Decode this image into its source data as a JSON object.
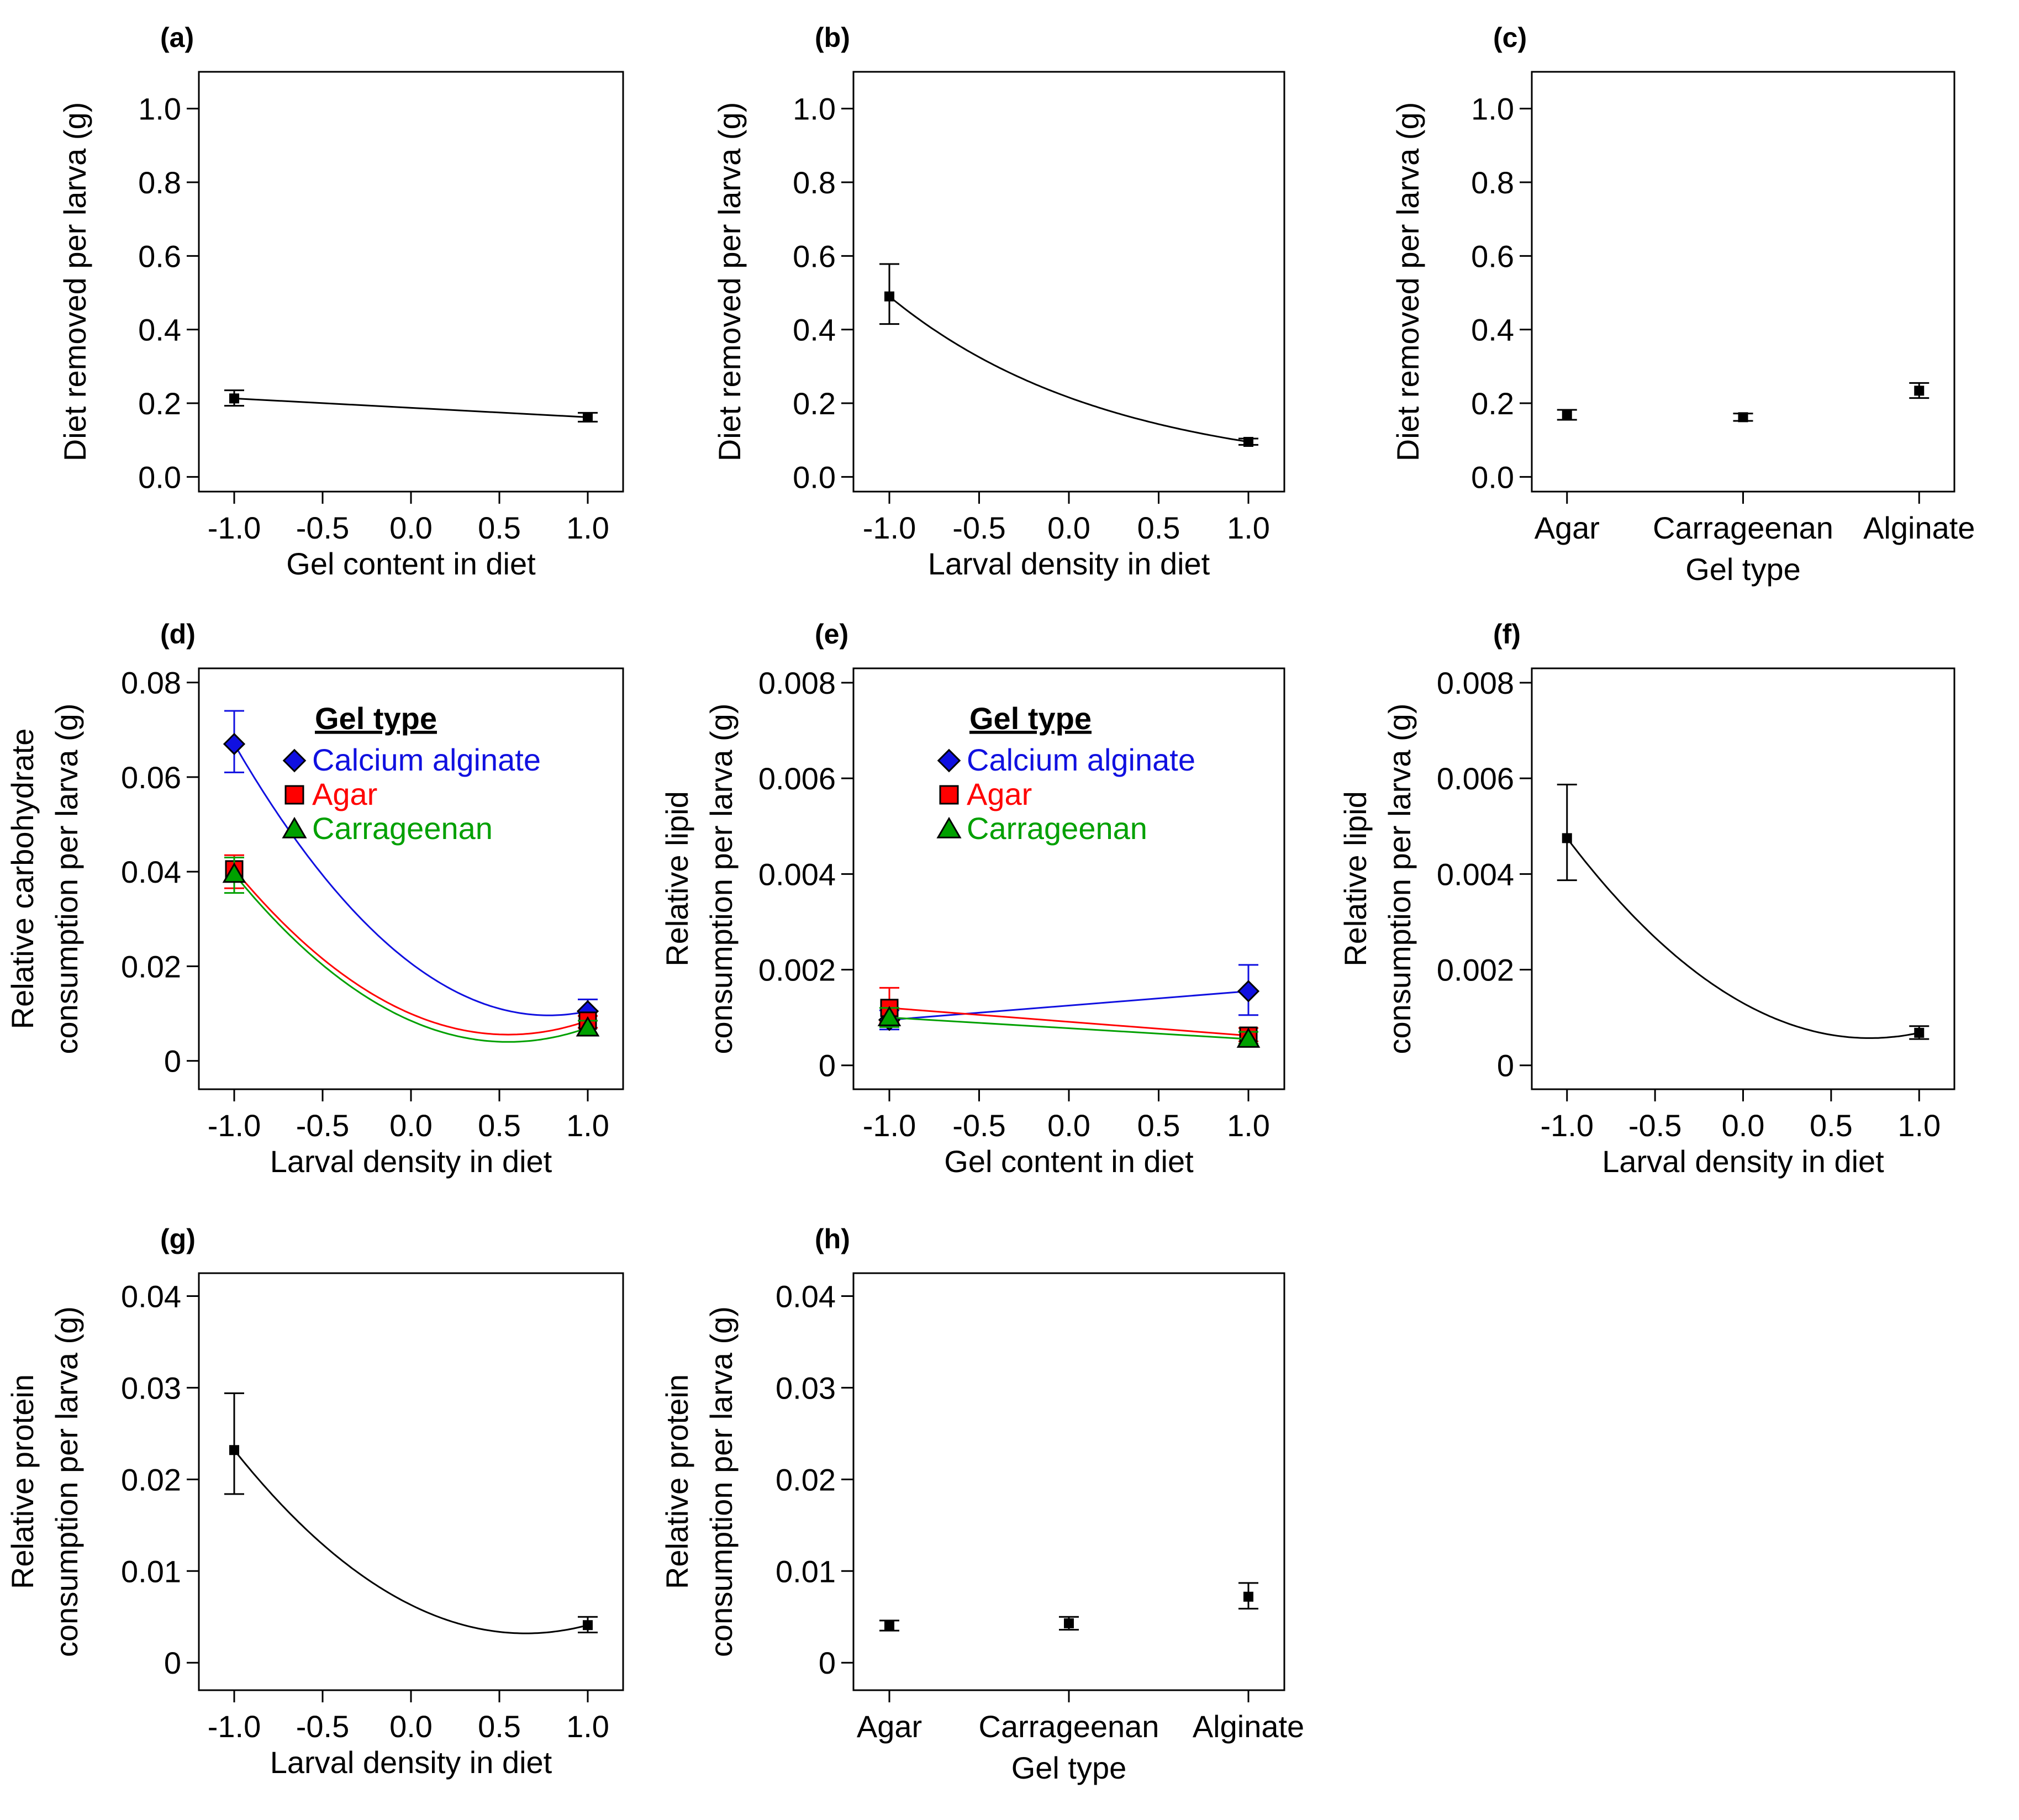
{
  "chart_data": [
    {
      "id": "a",
      "panel_label": "(a)",
      "type": "line",
      "xlabel": "Gel content in diet",
      "ylabel": "Diet removed per larva (g)",
      "xlim": [
        -1.2,
        1.2
      ],
      "ylim": [
        -0.04,
        1.1
      ],
      "xticks": [
        -1.0,
        -0.5,
        0.0,
        0.5,
        1.0
      ],
      "xticklabels": [
        "-1.0",
        "-0.5",
        "0.0",
        "0.5",
        "1.0"
      ],
      "yticks": [
        0,
        0.2,
        0.4,
        0.6,
        0.8,
        1.0
      ],
      "yticklabels": [
        "0.0",
        "0.2",
        "0.4",
        "0.6",
        "0.8",
        "1.0"
      ],
      "series": [
        {
          "name": "",
          "color": "#000000",
          "curve": "linear",
          "marker": "square",
          "points": [
            {
              "x": -1.0,
              "y": 0.213,
              "err_low": 0.193,
              "err_high": 0.235
            },
            {
              "x": 1.0,
              "y": 0.162,
              "err_low": 0.15,
              "err_high": 0.174
            }
          ]
        }
      ]
    },
    {
      "id": "b",
      "panel_label": "(b)",
      "type": "line",
      "xlabel": "Larval density in diet",
      "ylabel": "Diet removed per larva (g)",
      "xlim": [
        -1.2,
        1.2
      ],
      "ylim": [
        -0.04,
        1.1
      ],
      "xticks": [
        -1.0,
        -0.5,
        0.0,
        0.5,
        1.0
      ],
      "xticklabels": [
        "-1.0",
        "-0.5",
        "0.0",
        "0.5",
        "1.0"
      ],
      "yticks": [
        0,
        0.2,
        0.4,
        0.6,
        0.8,
        1.0
      ],
      "yticklabels": [
        "0.0",
        "0.2",
        "0.4",
        "0.6",
        "0.8",
        "1.0"
      ],
      "series": [
        {
          "name": "",
          "color": "#000000",
          "curve": "exp",
          "marker": "square",
          "points": [
            {
              "x": -1.0,
              "y": 0.49,
              "err_low": 0.415,
              "err_high": 0.578
            },
            {
              "x": 1.0,
              "y": 0.095,
              "err_low": 0.087,
              "err_high": 0.104
            }
          ]
        }
      ]
    },
    {
      "id": "c",
      "panel_label": "(c)",
      "type": "scatter",
      "xlabel": "Gel type",
      "ylabel": "Diet removed per larva (g)",
      "xlim": [
        -1.2,
        1.2
      ],
      "ylim": [
        -0.04,
        1.1
      ],
      "xticks": [
        -1.0,
        0.0,
        1.0
      ],
      "xticklabels": [
        "Agar",
        "Carrageenan",
        "Alginate"
      ],
      "yticks": [
        0,
        0.2,
        0.4,
        0.6,
        0.8,
        1.0
      ],
      "yticklabels": [
        "0.0",
        "0.2",
        "0.4",
        "0.6",
        "0.8",
        "1.0"
      ],
      "series": [
        {
          "name": "",
          "color": "#000000",
          "curve": "none",
          "marker": "square",
          "points": [
            {
              "x": -1.0,
              "y": 0.168,
              "err_low": 0.155,
              "err_high": 0.182
            },
            {
              "x": 0.0,
              "y": 0.162,
              "err_low": 0.152,
              "err_high": 0.172
            },
            {
              "x": 1.0,
              "y": 0.234,
              "err_low": 0.214,
              "err_high": 0.255
            }
          ]
        }
      ]
    },
    {
      "id": "d",
      "panel_label": "(d)",
      "type": "line",
      "xlabel": "Larval density in diet",
      "ylabel": "Relative carbohydrate\nconsumption per larva (g)",
      "xlim": [
        -1.2,
        1.2
      ],
      "ylim": [
        -0.006,
        0.083
      ],
      "xticks": [
        -1.0,
        -0.5,
        0.0,
        0.5,
        1.0
      ],
      "xticklabels": [
        "-1.0",
        "-0.5",
        "0.0",
        "0.5",
        "1.0"
      ],
      "yticks": [
        0,
        0.02,
        0.04,
        0.06,
        0.08
      ],
      "yticklabels": [
        "0",
        "0.02",
        "0.04",
        "0.06",
        "0.08"
      ],
      "legend": {
        "title": "Gel type",
        "position": "top-center",
        "entries": [
          {
            "label": "Calcium alginate",
            "color": "#1010e0",
            "marker": "diamond"
          },
          {
            "label": "Agar",
            "color": "#ff0000",
            "marker": "square"
          },
          {
            "label": "Carrageenan",
            "color": "#00a000",
            "marker": "triangle"
          }
        ]
      },
      "series": [
        {
          "name": "Calcium alginate",
          "color": "#1010e0",
          "curve": "quad",
          "quad_min_x": 0.78,
          "marker": "diamond",
          "points": [
            {
              "x": -1.0,
              "y": 0.067,
              "err_low": 0.061,
              "err_high": 0.074
            },
            {
              "x": 1.0,
              "y": 0.0105,
              "err_low": 0.0085,
              "err_high": 0.013
            }
          ]
        },
        {
          "name": "Agar",
          "color": "#ff0000",
          "curve": "quad",
          "quad_min_x": 0.55,
          "marker": "square",
          "points": [
            {
              "x": -1.0,
              "y": 0.0405,
              "err_low": 0.0365,
              "err_high": 0.0435
            },
            {
              "x": 1.0,
              "y": 0.0085,
              "err_low": 0.007,
              "err_high": 0.0095
            }
          ]
        },
        {
          "name": "Carrageenan",
          "color": "#00a000",
          "curve": "quad",
          "quad_min_x": 0.55,
          "marker": "triangle",
          "points": [
            {
              "x": -1.0,
              "y": 0.0395,
              "err_low": 0.0355,
              "err_high": 0.043
            },
            {
              "x": 1.0,
              "y": 0.007,
              "err_low": 0.0055,
              "err_high": 0.0085
            }
          ]
        }
      ]
    },
    {
      "id": "e",
      "panel_label": "(e)",
      "type": "line",
      "xlabel": "Gel content in diet",
      "ylabel": "Relative lipid\nconsumption per larva (g)",
      "xlim": [
        -1.2,
        1.2
      ],
      "ylim": [
        -0.0005,
        0.0083
      ],
      "xticks": [
        -1.0,
        -0.5,
        0.0,
        0.5,
        1.0
      ],
      "xticklabels": [
        "-1.0",
        "-0.5",
        "0.0",
        "0.5",
        "1.0"
      ],
      "yticks": [
        0,
        0.002,
        0.004,
        0.006,
        0.008
      ],
      "yticklabels": [
        "0",
        "0.002",
        "0.004",
        "0.006",
        "0.008"
      ],
      "legend": {
        "title": "Gel type",
        "position": "top-center",
        "entries": [
          {
            "label": "Calcium alginate",
            "color": "#1010e0",
            "marker": "diamond"
          },
          {
            "label": "Agar",
            "color": "#ff0000",
            "marker": "square"
          },
          {
            "label": "Carrageenan",
            "color": "#00a000",
            "marker": "triangle"
          }
        ]
      },
      "series": [
        {
          "name": "Calcium alginate",
          "color": "#1010e0",
          "curve": "linear",
          "marker": "diamond",
          "points": [
            {
              "x": -1.0,
              "y": 0.00095,
              "err_low": 0.00075,
              "err_high": 0.00115
            },
            {
              "x": 1.0,
              "y": 0.00155,
              "err_low": 0.00105,
              "err_high": 0.0021
            }
          ]
        },
        {
          "name": "Agar",
          "color": "#ff0000",
          "curve": "linear",
          "marker": "square",
          "points": [
            {
              "x": -1.0,
              "y": 0.0012,
              "err_low": 0.0009,
              "err_high": 0.00162
            },
            {
              "x": 1.0,
              "y": 0.00062,
              "err_low": 0.0005,
              "err_high": 0.00078
            }
          ]
        },
        {
          "name": "Carrageenan",
          "color": "#00a000",
          "curve": "linear",
          "marker": "triangle",
          "points": [
            {
              "x": -1.0,
              "y": 0.001,
              "err_low": 0.0008,
              "err_high": 0.0012
            },
            {
              "x": 1.0,
              "y": 0.00055,
              "err_low": 0.00045,
              "err_high": 0.0007
            }
          ]
        }
      ]
    },
    {
      "id": "f",
      "panel_label": "(f)",
      "type": "line",
      "xlabel": "Larval density in diet",
      "ylabel": "Relative lipid\nconsumption per larva (g)",
      "xlim": [
        -1.2,
        1.2
      ],
      "ylim": [
        -0.0005,
        0.0083
      ],
      "xticks": [
        -1.0,
        -0.5,
        0.0,
        0.5,
        1.0
      ],
      "xticklabels": [
        "-1.0",
        "-0.5",
        "0.0",
        "0.5",
        "1.0"
      ],
      "yticks": [
        0,
        0.002,
        0.004,
        0.006,
        0.008
      ],
      "yticklabels": [
        "0",
        "0.002",
        "0.004",
        "0.006",
        "0.008"
      ],
      "series": [
        {
          "name": "",
          "color": "#000000",
          "curve": "quad",
          "quad_min_x": 0.72,
          "marker": "square",
          "points": [
            {
              "x": -1.0,
              "y": 0.00475,
              "err_low": 0.00387,
              "err_high": 0.00587
            },
            {
              "x": 1.0,
              "y": 0.00068,
              "err_low": 0.00055,
              "err_high": 0.00082
            }
          ]
        }
      ]
    },
    {
      "id": "g",
      "panel_label": "(g)",
      "type": "line",
      "xlabel": "Larval density in diet",
      "ylabel": "Relative protein\nconsumption per larva (g)",
      "xlim": [
        -1.2,
        1.2
      ],
      "ylim": [
        -0.003,
        0.0425
      ],
      "xticks": [
        -1.0,
        -0.5,
        0.0,
        0.5,
        1.0
      ],
      "xticklabels": [
        "-1.0",
        "-0.5",
        "0.0",
        "0.5",
        "1.0"
      ],
      "yticks": [
        0,
        0.01,
        0.02,
        0.03,
        0.04
      ],
      "yticklabels": [
        "0",
        "0.01",
        "0.02",
        "0.03",
        "0.04"
      ],
      "series": [
        {
          "name": "",
          "color": "#000000",
          "curve": "quad",
          "quad_min_x": 0.65,
          "marker": "square",
          "points": [
            {
              "x": -1.0,
              "y": 0.0232,
              "err_low": 0.0184,
              "err_high": 0.0294
            },
            {
              "x": 1.0,
              "y": 0.0041,
              "err_low": 0.0033,
              "err_high": 0.005
            }
          ]
        }
      ]
    },
    {
      "id": "h",
      "panel_label": "(h)",
      "type": "scatter",
      "xlabel": "Gel type",
      "ylabel": "Relative protein\nconsumption per larva (g)",
      "xlim": [
        -1.2,
        1.2
      ],
      "ylim": [
        -0.003,
        0.0425
      ],
      "xticks": [
        -1.0,
        0.0,
        1.0
      ],
      "xticklabels": [
        "Agar",
        "Carrageenan",
        "Alginate"
      ],
      "yticks": [
        0,
        0.01,
        0.02,
        0.03,
        0.04
      ],
      "yticklabels": [
        "0",
        "0.01",
        "0.02",
        "0.03",
        "0.04"
      ],
      "series": [
        {
          "name": "",
          "color": "#000000",
          "curve": "none",
          "marker": "square",
          "points": [
            {
              "x": -1.0,
              "y": 0.004,
              "err_low": 0.0035,
              "err_high": 0.0046
            },
            {
              "x": 0.0,
              "y": 0.0043,
              "err_low": 0.0036,
              "err_high": 0.005
            },
            {
              "x": 1.0,
              "y": 0.0072,
              "err_low": 0.0059,
              "err_high": 0.0087
            }
          ]
        }
      ]
    }
  ]
}
